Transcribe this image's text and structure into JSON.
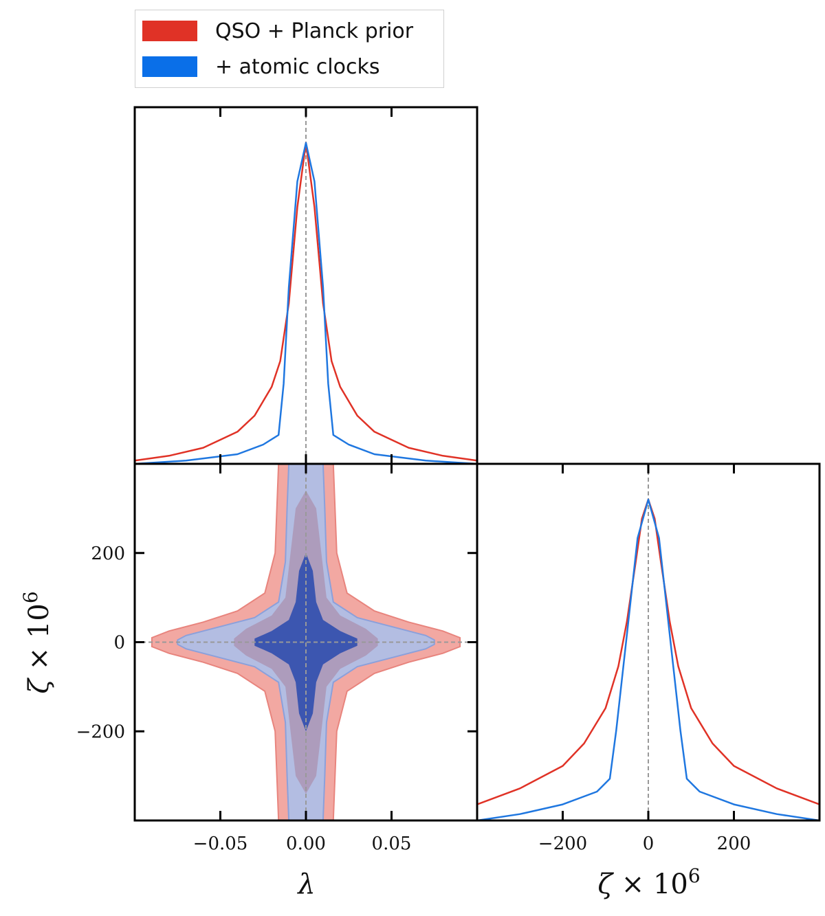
{
  "legend": {
    "items": [
      {
        "label": "QSO + Planck prior",
        "color": "#e03226"
      },
      {
        "label": "+ atomic clocks",
        "color": "#0a6fe8"
      }
    ]
  },
  "colors": {
    "qso_line": "#e03226",
    "clocks_line": "#1f77e0",
    "qso_fill_outer": "#f2a8a2",
    "qso_fill_inner": "#e03226",
    "clocks_fill_outer": "#b3bde2",
    "clocks_fill_inner": "#3c56b0",
    "mid_fill": "#ad9cbc",
    "reference": "#999999"
  },
  "chart_data": [
    {
      "panel": "lambda-1d",
      "type": "line",
      "title": "",
      "xlabel": "λ",
      "ylabel": "",
      "xlim": [
        -0.1,
        0.1
      ],
      "x_ticks": [
        -0.05,
        0.0,
        0.05
      ],
      "reference_line": {
        "x": 0.0
      },
      "series": [
        {
          "name": "QSO + Planck prior",
          "x": [
            -0.1,
            -0.08,
            -0.06,
            -0.04,
            -0.03,
            -0.02,
            -0.015,
            -0.01,
            -0.005,
            0.0,
            0.005,
            0.01,
            0.015,
            0.02,
            0.03,
            0.04,
            0.06,
            0.08,
            0.1
          ],
          "y": [
            0.01,
            0.025,
            0.05,
            0.1,
            0.15,
            0.24,
            0.32,
            0.5,
            0.8,
            1.0,
            0.8,
            0.5,
            0.32,
            0.24,
            0.15,
            0.1,
            0.05,
            0.025,
            0.01
          ]
        },
        {
          "name": "+ atomic clocks",
          "x": [
            -0.1,
            -0.07,
            -0.04,
            -0.025,
            -0.016,
            -0.013,
            -0.01,
            -0.005,
            0.0,
            0.005,
            0.01,
            0.013,
            0.016,
            0.025,
            0.04,
            0.07,
            0.1
          ],
          "y": [
            0.0,
            0.01,
            0.03,
            0.06,
            0.09,
            0.25,
            0.55,
            0.88,
            1.0,
            0.88,
            0.55,
            0.25,
            0.09,
            0.06,
            0.03,
            0.01,
            0.0
          ]
        }
      ]
    },
    {
      "panel": "lambda-zeta-2d",
      "type": "contour",
      "xlabel": "λ",
      "ylabel": "ζ × 10^6",
      "xlim": [
        -0.1,
        0.1
      ],
      "ylim": [
        -400,
        400
      ],
      "x_ticks": [
        -0.05,
        0.0,
        0.05
      ],
      "y_ticks": [
        -200,
        0,
        200
      ],
      "reference_lines": {
        "x": 0.0,
        "y": 0.0
      },
      "contours": [
        {
          "name": "QSO + Planck prior",
          "level": "95%",
          "x": [
            0,
            0.016,
            0.017,
            0.018,
            0.024,
            0.04,
            0.06,
            0.08,
            0.09,
            0.09,
            0.08,
            0.06,
            0.04,
            0.024,
            0.018,
            0.017,
            0.016,
            0,
            -0.016,
            -0.017,
            -0.018,
            -0.024,
            -0.04,
            -0.06,
            -0.08,
            -0.09,
            -0.09,
            -0.08,
            -0.06,
            -0.04,
            -0.024,
            -0.018,
            -0.017,
            -0.016
          ],
          "y": [
            400,
            400,
            300,
            200,
            110,
            70,
            45,
            25,
            10,
            -10,
            -25,
            -45,
            -70,
            -110,
            -200,
            -300,
            -400,
            -400,
            -400,
            -300,
            -200,
            -110,
            -70,
            -45,
            -25,
            -10,
            10,
            25,
            45,
            70,
            110,
            200,
            300,
            400
          ]
        },
        {
          "name": "+ atomic clocks",
          "level": "95%",
          "x": [
            0,
            0.01,
            0.011,
            0.012,
            0.016,
            0.03,
            0.05,
            0.07,
            0.075,
            0.075,
            0.07,
            0.05,
            0.03,
            0.016,
            0.012,
            0.011,
            0.01,
            0,
            -0.01,
            -0.011,
            -0.012,
            -0.016,
            -0.03,
            -0.05,
            -0.07,
            -0.075,
            -0.075,
            -0.07,
            -0.05,
            -0.03,
            -0.016,
            -0.012,
            -0.011,
            -0.01
          ],
          "y": [
            400,
            400,
            300,
            180,
            90,
            55,
            35,
            15,
            5,
            -5,
            -15,
            -35,
            -55,
            -90,
            -180,
            -300,
            -400,
            -400,
            -400,
            -300,
            -180,
            -90,
            -55,
            -35,
            -15,
            -5,
            5,
            15,
            35,
            55,
            90,
            180,
            300,
            400
          ]
        },
        {
          "name": "QSO + Planck prior",
          "level": "68%",
          "x": [
            0,
            0.006,
            0.009,
            0.012,
            0.02,
            0.035,
            0.042,
            0.042,
            0.035,
            0.02,
            0.012,
            0.009,
            0.006,
            0,
            -0.006,
            -0.009,
            -0.012,
            -0.02,
            -0.035,
            -0.042,
            -0.042,
            -0.035,
            -0.02,
            -0.012,
            -0.009,
            -0.006
          ],
          "y": [
            340,
            300,
            200,
            100,
            60,
            30,
            8,
            -8,
            -30,
            -60,
            -100,
            -200,
            -300,
            -340,
            -300,
            -200,
            -100,
            -60,
            -30,
            -8,
            8,
            30,
            60,
            100,
            200,
            300
          ]
        },
        {
          "name": "+ atomic clocks",
          "level": "68%",
          "x": [
            0,
            0.004,
            0.006,
            0.01,
            0.02,
            0.03,
            0.03,
            0.02,
            0.01,
            0.006,
            0.004,
            0,
            -0.004,
            -0.006,
            -0.01,
            -0.02,
            -0.03,
            -0.03,
            -0.02,
            -0.01,
            -0.006,
            -0.004
          ],
          "y": [
            200,
            160,
            90,
            50,
            25,
            8,
            -8,
            -25,
            -50,
            -90,
            -160,
            -200,
            -160,
            -90,
            -50,
            -25,
            -8,
            8,
            25,
            50,
            90,
            160
          ]
        }
      ]
    },
    {
      "panel": "zeta-1d",
      "type": "line",
      "xlabel": "ζ × 10^6",
      "ylabel": "",
      "xlim": [
        -400,
        400
      ],
      "x_ticks": [
        -200,
        0,
        200
      ],
      "reference_line": {
        "x": 0
      },
      "series": [
        {
          "name": "QSO + Planck prior",
          "x": [
            -400,
            -300,
            -200,
            -150,
            -100,
            -70,
            -50,
            -30,
            -15,
            0,
            15,
            30,
            50,
            70,
            100,
            150,
            200,
            300,
            400
          ],
          "y": [
            0.05,
            0.1,
            0.17,
            0.24,
            0.35,
            0.48,
            0.62,
            0.8,
            0.94,
            1.0,
            0.94,
            0.8,
            0.62,
            0.48,
            0.35,
            0.24,
            0.17,
            0.1,
            0.05
          ]
        },
        {
          "name": "+ atomic clocks",
          "x": [
            -400,
            -300,
            -200,
            -120,
            -90,
            -75,
            -50,
            -25,
            0,
            25,
            50,
            75,
            90,
            120,
            200,
            300,
            400
          ],
          "y": [
            0.0,
            0.02,
            0.05,
            0.09,
            0.13,
            0.28,
            0.58,
            0.88,
            1.0,
            0.88,
            0.58,
            0.28,
            0.13,
            0.09,
            0.05,
            0.02,
            0.0
          ]
        }
      ]
    }
  ]
}
